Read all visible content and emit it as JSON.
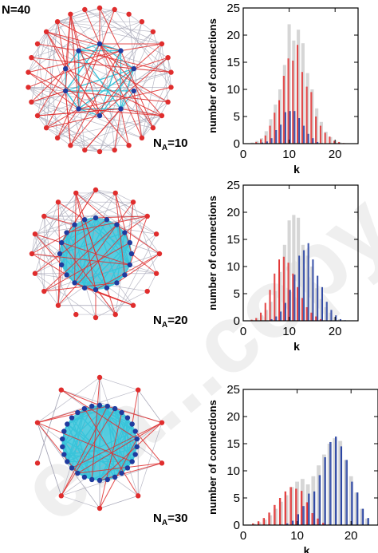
{
  "colors": {
    "red": "#e02d2d",
    "blue": "#1f3b9e",
    "cyan": "#39c4da",
    "gray": "#d6d6d6",
    "edge_gray": "#a8a8b8",
    "watermark": "#eeeeee"
  },
  "watermark_text": "era...copy",
  "network_labels": {
    "N": "N=40",
    "panel1": {
      "prefix": "N",
      "sub": "A",
      "suffix": "=10"
    },
    "panel2": {
      "prefix": "N",
      "sub": "A",
      "suffix": "=20"
    },
    "panel3": {
      "prefix": "N",
      "sub": "A",
      "suffix": "=30"
    }
  },
  "networks": [
    {
      "outer_nodes": 30,
      "inner_nodes": 10
    },
    {
      "outer_nodes": 20,
      "inner_nodes": 20
    },
    {
      "outer_nodes": 10,
      "inner_nodes": 30
    }
  ],
  "chart_data": [
    {
      "type": "bar",
      "ylabel": "number of connections",
      "xlabel": "k",
      "xlim": [
        0,
        25
      ],
      "ylim": [
        0,
        25
      ],
      "xticks": [
        0,
        10,
        20
      ],
      "yticks": [
        0,
        5,
        10,
        15,
        20,
        25
      ],
      "k": [
        2,
        3,
        4,
        5,
        6,
        7,
        8,
        9,
        10,
        11,
        12,
        13,
        14,
        15,
        16,
        17,
        18,
        19,
        20,
        21,
        22,
        23
      ],
      "series": [
        {
          "color": "gray",
          "values": [
            0.2,
            0.5,
            1,
            2.3,
            4.5,
            7.2,
            10,
            14.5,
            22,
            19,
            21,
            18.5,
            13,
            10,
            6.5,
            4,
            2.2,
            1.2,
            0.6,
            0.3,
            0.1,
            0
          ]
        },
        {
          "color": "red",
          "values": [
            0,
            0.3,
            0.8,
            1.5,
            3.3,
            5.7,
            8,
            12.5,
            15.7,
            15.3,
            18.2,
            13.2,
            10.5,
            9.5,
            5,
            3.3,
            2,
            1.3,
            0.5,
            0.3,
            0.1,
            0
          ]
        },
        {
          "color": "blue",
          "values": [
            0,
            0,
            0.2,
            0.4,
            1,
            2.5,
            3.5,
            5.8,
            6,
            6,
            4.7,
            3.3,
            1.8,
            1,
            0.3,
            0.1,
            0,
            0,
            0,
            0,
            0,
            0
          ]
        }
      ]
    },
    {
      "type": "bar",
      "ylabel": "number of connections",
      "xlabel": "k",
      "xlim": [
        0,
        25
      ],
      "ylim": [
        0,
        25
      ],
      "xticks": [
        0,
        10,
        20
      ],
      "yticks": [
        0,
        5,
        10,
        15,
        20,
        25
      ],
      "k": [
        2,
        3,
        4,
        5,
        6,
        7,
        8,
        9,
        10,
        11,
        12,
        13,
        14,
        15,
        16,
        17,
        18,
        19,
        20,
        21,
        22,
        23
      ],
      "series": [
        {
          "color": "gray",
          "values": [
            0.2,
            0.5,
            1,
            2,
            3.5,
            5.5,
            9,
            14,
            18.5,
            19.5,
            19,
            14,
            12,
            10,
            6,
            4,
            2.5,
            1.5,
            0.6,
            0.3,
            0.1,
            0
          ]
        },
        {
          "color": "red",
          "values": [
            0.2,
            0.5,
            1.5,
            3.3,
            5.7,
            8.7,
            11.3,
            11.8,
            10.7,
            8.7,
            6.2,
            4.2,
            2.5,
            1.5,
            0.8,
            0.3,
            0,
            0,
            0,
            0,
            0,
            0
          ]
        },
        {
          "color": "blue",
          "values": [
            0,
            0,
            0,
            0,
            0.3,
            0.8,
            1.7,
            3.3,
            5.7,
            8.5,
            12,
            13,
            14.3,
            11.3,
            8.3,
            6.2,
            3.5,
            2,
            1,
            0.3,
            0.1,
            0
          ]
        }
      ]
    },
    {
      "type": "bar",
      "ylabel": "number of connections",
      "xlabel": "k",
      "xlim": [
        0,
        25
      ],
      "ylim": [
        0,
        25
      ],
      "xticks": [
        0,
        10,
        20
      ],
      "yticks": [
        0,
        5,
        10,
        15,
        20,
        25
      ],
      "k": [
        2,
        3,
        4,
        5,
        6,
        7,
        8,
        9,
        10,
        11,
        12,
        13,
        14,
        15,
        16,
        17,
        18,
        19,
        20,
        21,
        22,
        23
      ],
      "series": [
        {
          "color": "gray",
          "values": [
            0.2,
            0.5,
            1,
            1.8,
            3,
            4.3,
            5.5,
            7,
            8,
            8.5,
            7.5,
            9,
            11,
            13,
            15,
            16,
            15.5,
            12,
            9,
            6,
            3,
            1.2
          ]
        },
        {
          "color": "red",
          "values": [
            0.3,
            0.7,
            1.3,
            2.3,
            3.7,
            5,
            6.2,
            7,
            6.7,
            6.3,
            4.2,
            2.2,
            1.2,
            0.4,
            0.1,
            0,
            0,
            0,
            0,
            0,
            0,
            0
          ]
        },
        {
          "color": "blue",
          "values": [
            0,
            0,
            0,
            0,
            0,
            0.1,
            0.3,
            0.8,
            2,
            3.5,
            5.8,
            6.2,
            9.2,
            12.5,
            15.3,
            16.3,
            14.5,
            12,
            8,
            6,
            3,
            1.3
          ]
        }
      ]
    }
  ]
}
